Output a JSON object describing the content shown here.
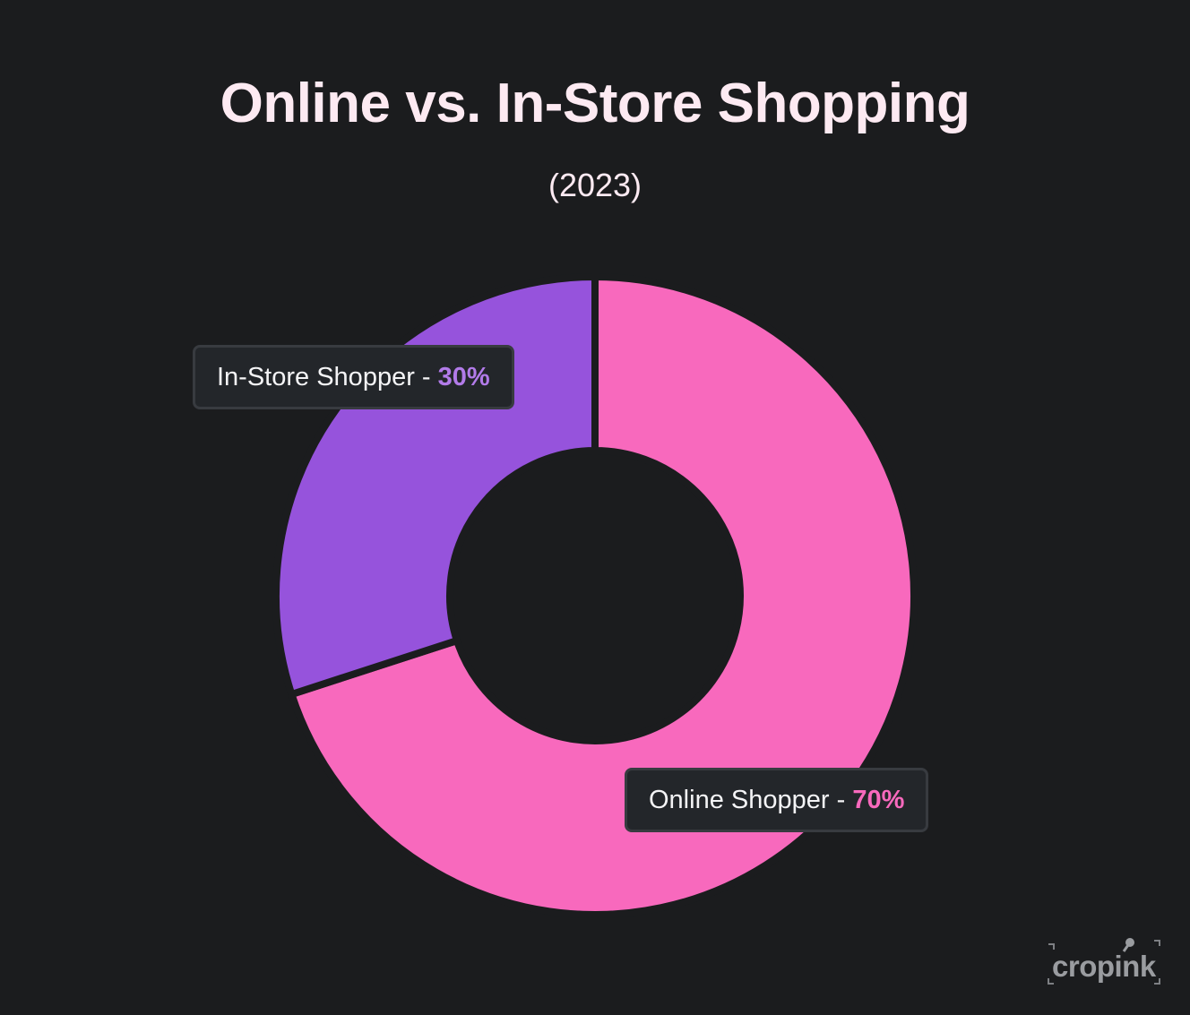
{
  "chart_data": {
    "type": "pie",
    "title": "Online vs. In-Store Shopping",
    "subtitle": "(2023)",
    "donut": true,
    "slices": [
      {
        "label": "Online Shopper",
        "value": 70,
        "value_label": "70%",
        "color": "#f869bd"
      },
      {
        "label": "In-Store Shopper",
        "value": 30,
        "value_label": "30%",
        "color": "#9653dc"
      }
    ],
    "legend": "callouts"
  },
  "callouts": {
    "instore": {
      "label": "In-Store Shopper - ",
      "pct": "30%",
      "pct_color": "#b27be9"
    },
    "online": {
      "label": "Online Shopper - ",
      "pct": "70%",
      "pct_color": "#f869bd"
    }
  },
  "watermark": {
    "text": "cropink"
  },
  "colors": {
    "background": "#1b1c1e",
    "title": "#fdeaf2"
  }
}
